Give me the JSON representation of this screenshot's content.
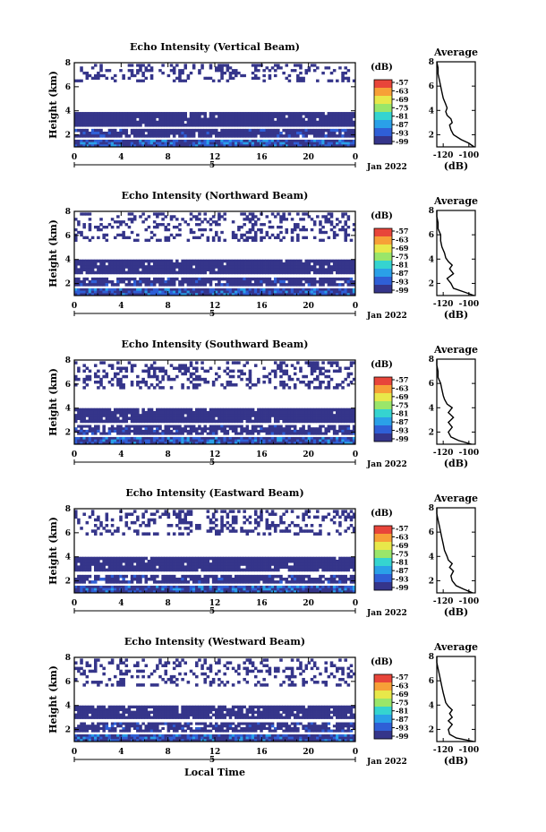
{
  "chart_data": [
    {
      "type": "heatmap",
      "title": "Echo Intensity (Vertical Beam)",
      "ylabel": "Height (km)",
      "x_ticks": [
        "0",
        "4",
        "8",
        "12",
        "16",
        "20",
        "0"
      ],
      "xlim": [
        0,
        24
      ],
      "day_label": "5",
      "date_label": "Jan 2022",
      "ylim": [
        1,
        8
      ],
      "y_ticks": [
        "2",
        "4",
        "6",
        "8"
      ],
      "colorbar": {
        "unit": "(dB)",
        "ticks": [
          "-57",
          "-63",
          "-69",
          "-75",
          "-81",
          "-87",
          "-93",
          "-99"
        ]
      },
      "layers": [
        {
          "name": "upper scattered echo",
          "km": [
            6.4,
            7.9
          ],
          "density": 0.35,
          "level": "-99"
        },
        {
          "name": "mid-level echo band",
          "km": [
            2.7,
            3.9
          ],
          "density": 0.95,
          "level": "-99"
        },
        {
          "name": "low echo layer",
          "km": [
            1.8,
            2.5
          ],
          "density": 0.9,
          "level": "-99"
        },
        {
          "name": "near-surface echo",
          "km": [
            1.0,
            1.6
          ],
          "density": 1.0,
          "level": "-93"
        }
      ],
      "profile": {
        "title": "Average",
        "xlabel": "(dB)",
        "x_ticks": [
          "-120",
          "-100"
        ],
        "xlim": [
          -125,
          -95
        ],
        "ylim": [
          1,
          8
        ],
        "y_ticks": [
          "2",
          "4",
          "6",
          "8"
        ],
        "height_km": [
          1.0,
          1.3,
          1.6,
          2.0,
          2.4,
          2.8,
          3.0,
          3.3,
          3.6,
          3.9,
          4.2,
          4.5,
          5.0,
          5.5,
          6.0,
          6.5,
          7.0,
          7.5,
          8.0
        ],
        "db": [
          -96,
          -100,
          -106,
          -112,
          -114,
          -115,
          -113,
          -114,
          -117,
          -118,
          -117,
          -118,
          -120,
          -121,
          -122,
          -123,
          -124,
          -124,
          -125
        ]
      }
    },
    {
      "type": "heatmap",
      "title": "Echo Intensity (Northward Beam)",
      "ylabel": "Height (km)",
      "x_ticks": [
        "0",
        "4",
        "8",
        "12",
        "16",
        "20",
        "0"
      ],
      "xlim": [
        0,
        24
      ],
      "day_label": "5",
      "date_label": "Jan 2022",
      "ylim": [
        1,
        8
      ],
      "y_ticks": [
        "2",
        "4",
        "6",
        "8"
      ],
      "colorbar": {
        "unit": "(dB)",
        "ticks": [
          "-57",
          "-63",
          "-69",
          "-75",
          "-81",
          "-87",
          "-93",
          "-99"
        ]
      },
      "layers": [
        {
          "name": "upper scattered echo",
          "km": [
            5.5,
            7.9
          ],
          "density": 0.35,
          "level": "-99"
        },
        {
          "name": "mid-level echo band",
          "km": [
            2.8,
            4.0
          ],
          "density": 0.95,
          "level": "-99"
        },
        {
          "name": "low echo layer",
          "km": [
            1.8,
            2.5
          ],
          "density": 0.85,
          "level": "-99"
        },
        {
          "name": "near-surface echo",
          "km": [
            1.0,
            1.6
          ],
          "density": 1.0,
          "level": "-93"
        }
      ],
      "profile": {
        "title": "Average",
        "xlabel": "(dB)",
        "x_ticks": [
          "-120",
          "-100"
        ],
        "xlim": [
          -125,
          -95
        ],
        "ylim": [
          1,
          8
        ],
        "y_ticks": [
          "2",
          "4",
          "6",
          "8"
        ],
        "height_km": [
          1.0,
          1.3,
          1.6,
          2.0,
          2.4,
          2.8,
          3.2,
          3.5,
          3.8,
          4.1,
          4.5,
          5.0,
          5.5,
          6.0,
          6.5,
          7.0,
          7.5,
          8.0
        ],
        "db": [
          -96,
          -104,
          -112,
          -114,
          -117,
          -112,
          -115,
          -113,
          -116,
          -118,
          -119,
          -121,
          -122,
          -122,
          -124,
          -124,
          -125,
          -125
        ]
      }
    },
    {
      "type": "heatmap",
      "title": "Echo Intensity (Southward Beam)",
      "ylabel": "Height (km)",
      "x_ticks": [
        "0",
        "4",
        "8",
        "12",
        "16",
        "20",
        "0"
      ],
      "xlim": [
        0,
        24
      ],
      "day_label": "5",
      "date_label": "Jan 2022",
      "ylim": [
        1,
        8
      ],
      "y_ticks": [
        "2",
        "4",
        "6",
        "8"
      ],
      "colorbar": {
        "unit": "(dB)",
        "ticks": [
          "-57",
          "-63",
          "-69",
          "-75",
          "-81",
          "-87",
          "-93",
          "-99"
        ]
      },
      "layers": [
        {
          "name": "upper scattered echo",
          "km": [
            5.6,
            7.9
          ],
          "density": 0.35,
          "level": "-99"
        },
        {
          "name": "mid-level echo band",
          "km": [
            2.8,
            4.0
          ],
          "density": 0.95,
          "level": "-99"
        },
        {
          "name": "low echo layer",
          "km": [
            1.8,
            2.6
          ],
          "density": 0.8,
          "level": "-99"
        },
        {
          "name": "near-surface echo",
          "km": [
            1.0,
            1.6
          ],
          "density": 1.0,
          "level": "-93"
        }
      ],
      "profile": {
        "title": "Average",
        "xlabel": "(dB)",
        "x_ticks": [
          "-120",
          "-100"
        ],
        "xlim": [
          -125,
          -95
        ],
        "ylim": [
          1,
          8
        ],
        "y_ticks": [
          "2",
          "4",
          "6",
          "8"
        ],
        "height_km": [
          1.0,
          1.3,
          1.6,
          2.0,
          2.4,
          2.8,
          3.2,
          3.6,
          4.0,
          4.3,
          4.7,
          5.0,
          5.5,
          6.0,
          6.5,
          7.0,
          7.5,
          8.0
        ],
        "db": [
          -98,
          -108,
          -114,
          -116,
          -113,
          -116,
          -112,
          -116,
          -113,
          -117,
          -119,
          -120,
          -121,
          -122,
          -124,
          -124,
          -125,
          -125
        ]
      }
    },
    {
      "type": "heatmap",
      "title": "Echo Intensity (Eastward Beam)",
      "ylabel": "Height (km)",
      "x_ticks": [
        "0",
        "4",
        "8",
        "12",
        "16",
        "20",
        "0"
      ],
      "xlim": [
        0,
        24
      ],
      "day_label": "5",
      "date_label": "Jan 2022",
      "ylim": [
        1,
        8
      ],
      "y_ticks": [
        "2",
        "4",
        "6",
        "8"
      ],
      "colorbar": {
        "unit": "(dB)",
        "ticks": [
          "-57",
          "-63",
          "-69",
          "-75",
          "-81",
          "-87",
          "-93",
          "-99"
        ]
      },
      "layers": [
        {
          "name": "upper scattered echo",
          "km": [
            5.8,
            7.9
          ],
          "density": 0.35,
          "level": "-99"
        },
        {
          "name": "mid-level echo band",
          "km": [
            2.8,
            4.0
          ],
          "density": 0.95,
          "level": "-99"
        },
        {
          "name": "low echo layer",
          "km": [
            1.8,
            2.5
          ],
          "density": 0.85,
          "level": "-99"
        },
        {
          "name": "near-surface echo",
          "km": [
            1.0,
            1.6
          ],
          "density": 1.0,
          "level": "-93"
        }
      ],
      "profile": {
        "title": "Average",
        "xlabel": "(dB)",
        "x_ticks": [
          "-120",
          "-100"
        ],
        "xlim": [
          -125,
          -95
        ],
        "ylim": [
          1,
          8
        ],
        "y_ticks": [
          "2",
          "4",
          "6",
          "8"
        ],
        "height_km": [
          1.0,
          1.3,
          1.6,
          2.0,
          2.4,
          2.8,
          3.1,
          3.4,
          3.7,
          4.0,
          4.5,
          5.0,
          5.5,
          6.0,
          6.5,
          7.0,
          7.5,
          8.0
        ],
        "db": [
          -97,
          -104,
          -110,
          -113,
          -114,
          -112,
          -115,
          -113,
          -116,
          -117,
          -119,
          -120,
          -121,
          -122,
          -123,
          -124,
          -125,
          -125
        ]
      }
    },
    {
      "type": "heatmap",
      "title": "Echo Intensity (Westward Beam)",
      "ylabel": "Height (km)",
      "x_ticks": [
        "0",
        "4",
        "8",
        "12",
        "16",
        "20",
        "0"
      ],
      "xlim": [
        0,
        24
      ],
      "day_label": "5",
      "date_label": "Jan 2022",
      "xlabel": "Local Time",
      "ylim": [
        1,
        8
      ],
      "y_ticks": [
        "2",
        "4",
        "6",
        "8"
      ],
      "colorbar": {
        "unit": "(dB)",
        "ticks": [
          "-57",
          "-63",
          "-69",
          "-75",
          "-81",
          "-87",
          "-93",
          "-99"
        ]
      },
      "layers": [
        {
          "name": "upper scattered echo",
          "km": [
            5.6,
            7.9
          ],
          "density": 0.3,
          "level": "-99"
        },
        {
          "name": "mid-level echo band",
          "km": [
            2.9,
            4.0
          ],
          "density": 0.9,
          "level": "-99"
        },
        {
          "name": "low echo layer",
          "km": [
            1.8,
            2.6
          ],
          "density": 0.8,
          "level": "-99"
        },
        {
          "name": "near-surface echo",
          "km": [
            1.0,
            1.6
          ],
          "density": 1.0,
          "level": "-93"
        }
      ],
      "profile": {
        "title": "Average",
        "xlabel": "(dB)",
        "x_ticks": [
          "-120",
          "-100"
        ],
        "xlim": [
          -125,
          -95
        ],
        "ylim": [
          1,
          8
        ],
        "y_ticks": [
          "2",
          "4",
          "6",
          "8"
        ],
        "height_km": [
          1.0,
          1.3,
          1.6,
          2.0,
          2.4,
          2.7,
          3.0,
          3.3,
          3.6,
          3.9,
          4.2,
          4.6,
          5.0,
          5.5,
          6.0,
          6.5,
          7.0,
          7.5,
          8.0
        ],
        "db": [
          -96,
          -110,
          -115,
          -116,
          -113,
          -116,
          -113,
          -115,
          -113,
          -116,
          -118,
          -119,
          -120,
          -121,
          -122,
          -123,
          -124,
          -125,
          -125
        ]
      }
    }
  ],
  "colors": {
    "colormap": [
      "#35358a",
      "#2f5fd6",
      "#2aa0e8",
      "#35d4d0",
      "#9ae66a",
      "#e8e84a",
      "#f7a037",
      "#e8453a"
    ],
    "background": "#ffffff",
    "axis": "#000000"
  }
}
